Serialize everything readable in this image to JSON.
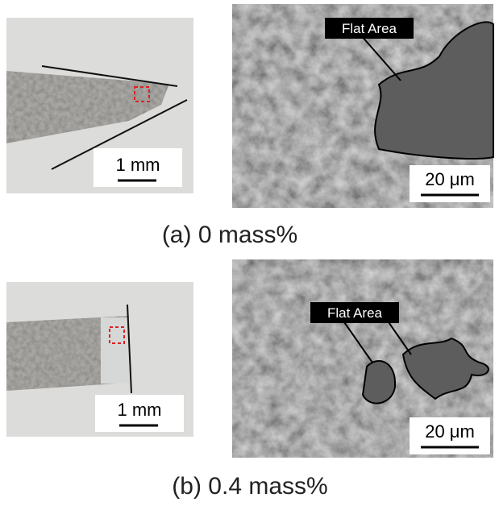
{
  "panels": [
    {
      "caption": "(a) 0 mass%",
      "photo_scale": "1 mm",
      "sem_label": "Flat Area",
      "sem_scale": "20 μm"
    },
    {
      "caption": "(b) 0.4 mass%",
      "photo_scale": "1 mm",
      "sem_label": "Flat Area",
      "sem_scale": "20 μm"
    }
  ]
}
